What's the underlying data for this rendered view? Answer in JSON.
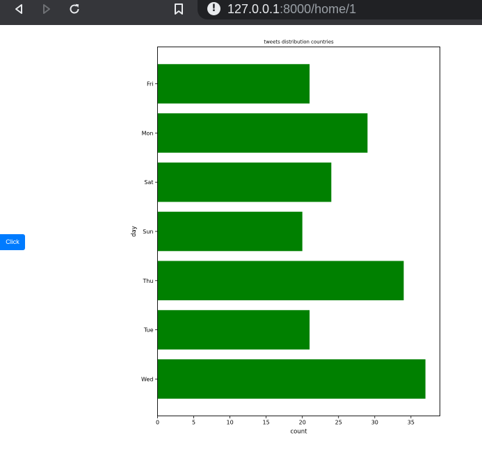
{
  "browser": {
    "url_host": "127.0.0.1",
    "url_rest": ":8000/home/1",
    "info_glyph": "!",
    "back_icon": "back-arrow-icon",
    "forward_icon": "forward-arrow-icon",
    "reload_icon": "reload-icon",
    "bookmark_icon": "bookmark-icon"
  },
  "page": {
    "click_label": "Click",
    "button_color": "#007bff"
  },
  "chart_data": {
    "type": "bar",
    "orientation": "horizontal",
    "title": "tweets distribution countries",
    "xlabel": "count",
    "ylabel": "day",
    "categories": [
      "Fri",
      "Mon",
      "Sat",
      "Sun",
      "Thu",
      "Tue",
      "Wed"
    ],
    "values": [
      21,
      29,
      24,
      20,
      34,
      21,
      37
    ],
    "xlim": [
      0,
      39
    ],
    "xticks": [
      0,
      5,
      10,
      15,
      20,
      25,
      30,
      35
    ],
    "bar_color": "#008000",
    "grid": false
  }
}
